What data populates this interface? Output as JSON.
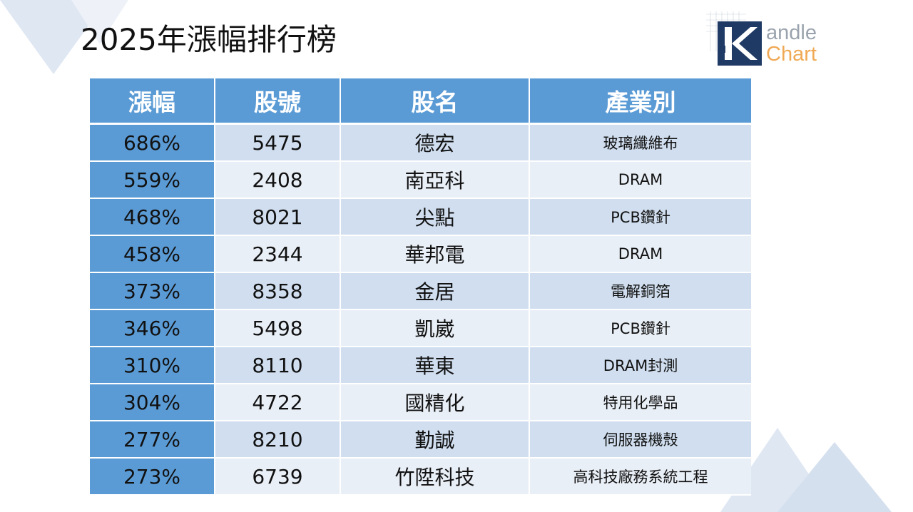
{
  "title": "2025年漲幅排行榜",
  "logo": {
    "line1": "andle",
    "line2": "Chart",
    "letter": "K"
  },
  "colors": {
    "header": "#5b9bd5",
    "row_dark": "#d0deef",
    "row_light": "#e9eff7",
    "logo_orange": "#f0a955",
    "logo_navy": "#1f3a64"
  },
  "table": {
    "headers": [
      "漲幅",
      "股號",
      "股名",
      "產業別"
    ],
    "rows": [
      {
        "change": "686%",
        "code": "5475",
        "name": "德宏",
        "industry": "玻璃纖維布"
      },
      {
        "change": "559%",
        "code": "2408",
        "name": "南亞科",
        "industry": "DRAM"
      },
      {
        "change": "468%",
        "code": "8021",
        "name": "尖點",
        "industry": "PCB鑽針"
      },
      {
        "change": "458%",
        "code": "2344",
        "name": "華邦電",
        "industry": "DRAM"
      },
      {
        "change": "373%",
        "code": "8358",
        "name": "金居",
        "industry": "電解銅箔"
      },
      {
        "change": "346%",
        "code": "5498",
        "name": "凱崴",
        "industry": "PCB鑽針"
      },
      {
        "change": "310%",
        "code": "8110",
        "name": "華東",
        "industry": "DRAM封測"
      },
      {
        "change": "304%",
        "code": "4722",
        "name": "國精化",
        "industry": "特用化學品"
      },
      {
        "change": "277%",
        "code": "8210",
        "name": "勤誠",
        "industry": "伺服器機殼"
      },
      {
        "change": "273%",
        "code": "6739",
        "name": "竹陞科技",
        "industry": "高科技廠務系統工程"
      }
    ]
  }
}
